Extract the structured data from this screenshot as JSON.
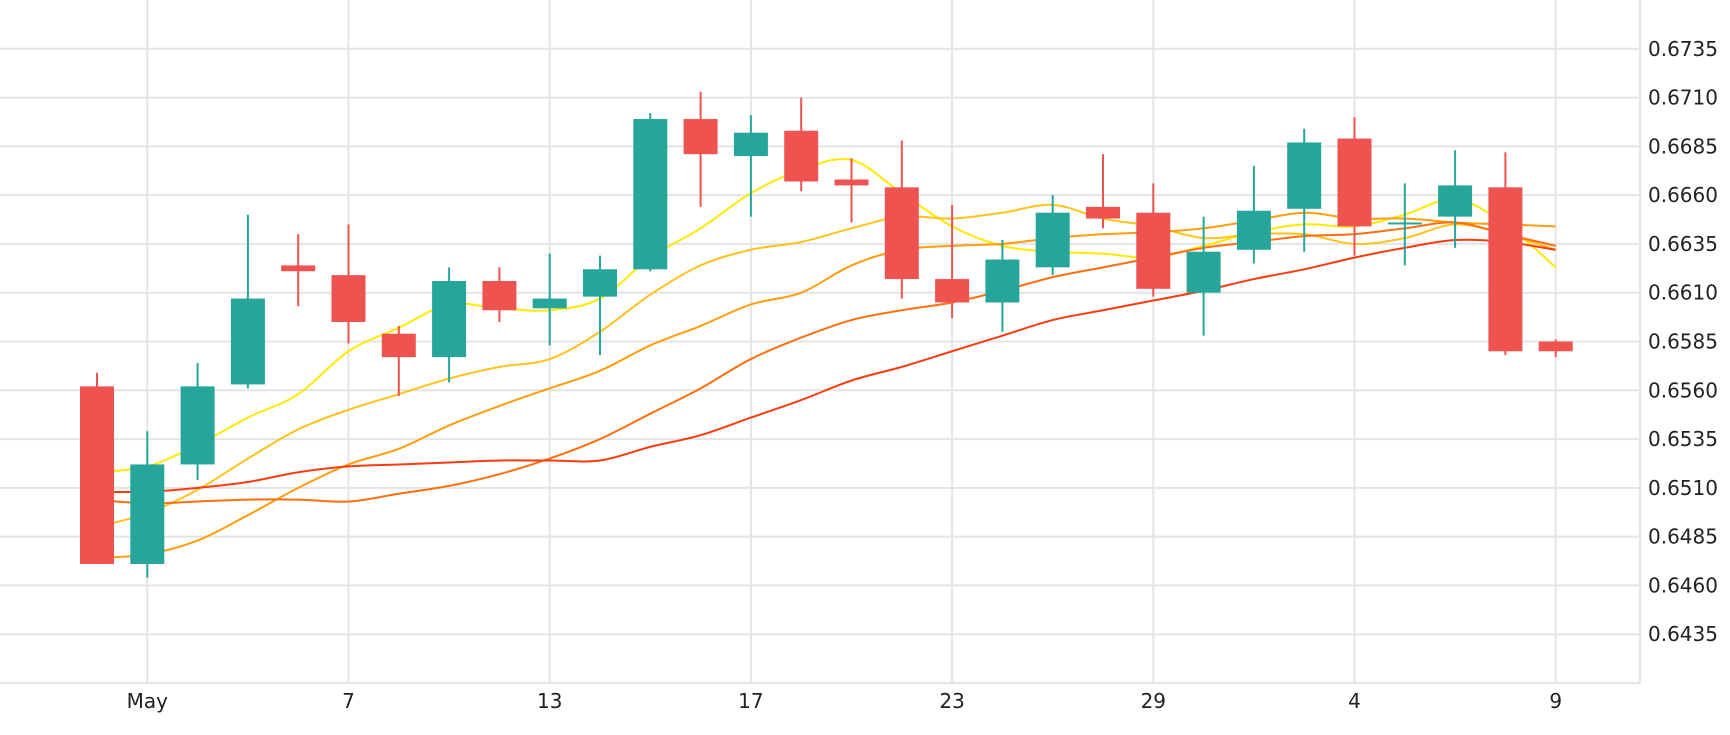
{
  "chart_data": {
    "type": "candlestick",
    "title": "",
    "xlabel": "",
    "ylabel": "",
    "ylim": [
      0.641,
      0.676
    ],
    "grid": true,
    "y_axis_position": "right",
    "y_ticks": [
      "0.6735",
      "0.6710",
      "0.6685",
      "0.6660",
      "0.6635",
      "0.6610",
      "0.6585",
      "0.6560",
      "0.6535",
      "0.6510",
      "0.6485",
      "0.6460",
      "0.6435"
    ],
    "x_ticks": [
      {
        "label": "May",
        "index": 1
      },
      {
        "label": "7",
        "index": 5
      },
      {
        "label": "13",
        "index": 9
      },
      {
        "label": "17",
        "index": 13
      },
      {
        "label": "23",
        "index": 17
      },
      {
        "label": "29",
        "index": 21
      },
      {
        "label": "4",
        "index": 25
      },
      {
        "label": "9",
        "index": 29
      }
    ],
    "colors": {
      "up": "#26a69a",
      "down": "#ef5350",
      "grid": "#e4e4e4"
    },
    "candles": [
      {
        "o": 0.6562,
        "h": 0.6569,
        "l": 0.6471,
        "c": 0.6471
      },
      {
        "o": 0.6471,
        "h": 0.6539,
        "l": 0.6464,
        "c": 0.6522
      },
      {
        "o": 0.6522,
        "h": 0.6574,
        "l": 0.6514,
        "c": 0.6562
      },
      {
        "o": 0.6563,
        "h": 0.665,
        "l": 0.6561,
        "c": 0.6607
      },
      {
        "o": 0.6624,
        "h": 0.664,
        "l": 0.6603,
        "c": 0.6621
      },
      {
        "o": 0.6619,
        "h": 0.6645,
        "l": 0.6584,
        "c": 0.6595
      },
      {
        "o": 0.6589,
        "h": 0.6593,
        "l": 0.6557,
        "c": 0.6577
      },
      {
        "o": 0.6577,
        "h": 0.6623,
        "l": 0.6564,
        "c": 0.6616
      },
      {
        "o": 0.6616,
        "h": 0.6623,
        "l": 0.6595,
        "c": 0.6601
      },
      {
        "o": 0.6602,
        "h": 0.663,
        "l": 0.6583,
        "c": 0.6607
      },
      {
        "o": 0.6608,
        "h": 0.6629,
        "l": 0.6578,
        "c": 0.6622
      },
      {
        "o": 0.6622,
        "h": 0.6702,
        "l": 0.6621,
        "c": 0.6699
      },
      {
        "o": 0.6699,
        "h": 0.6713,
        "l": 0.6654,
        "c": 0.6681
      },
      {
        "o": 0.668,
        "h": 0.6701,
        "l": 0.6649,
        "c": 0.6692
      },
      {
        "o": 0.6693,
        "h": 0.671,
        "l": 0.6662,
        "c": 0.6667
      },
      {
        "o": 0.6668,
        "h": 0.6679,
        "l": 0.6646,
        "c": 0.6665
      },
      {
        "o": 0.6664,
        "h": 0.6688,
        "l": 0.6607,
        "c": 0.6617
      },
      {
        "o": 0.6617,
        "h": 0.6655,
        "l": 0.6597,
        "c": 0.6605
      },
      {
        "o": 0.6605,
        "h": 0.6637,
        "l": 0.659,
        "c": 0.6627
      },
      {
        "o": 0.6623,
        "h": 0.666,
        "l": 0.6619,
        "c": 0.6651
      },
      {
        "o": 0.6654,
        "h": 0.6681,
        "l": 0.6643,
        "c": 0.6648
      },
      {
        "o": 0.6651,
        "h": 0.6666,
        "l": 0.6608,
        "c": 0.6612
      },
      {
        "o": 0.661,
        "h": 0.6649,
        "l": 0.6588,
        "c": 0.6631
      },
      {
        "o": 0.6632,
        "h": 0.6675,
        "l": 0.6625,
        "c": 0.6652
      },
      {
        "o": 0.6653,
        "h": 0.6694,
        "l": 0.6631,
        "c": 0.6687
      },
      {
        "o": 0.6689,
        "h": 0.67,
        "l": 0.6629,
        "c": 0.6644
      },
      {
        "o": 0.6645,
        "h": 0.6666,
        "l": 0.6624,
        "c": 0.6646
      },
      {
        "o": 0.6649,
        "h": 0.6683,
        "l": 0.6633,
        "c": 0.6665
      },
      {
        "o": 0.6664,
        "h": 0.6682,
        "l": 0.6578,
        "c": 0.658
      },
      {
        "o": 0.6585,
        "h": 0.6586,
        "l": 0.6577,
        "c": 0.658
      }
    ],
    "moving_averages": [
      {
        "color": "#ffea00",
        "values": [
          0.6518,
          0.6521,
          0.6532,
          0.6546,
          0.6558,
          0.658,
          0.6592,
          0.6604,
          0.6602,
          0.6601,
          0.6607,
          0.6628,
          0.6643,
          0.6661,
          0.6673,
          0.6678,
          0.6661,
          0.6644,
          0.6634,
          0.6631,
          0.663,
          0.6628,
          0.6634,
          0.6641,
          0.6645,
          0.6644,
          0.665,
          0.6658,
          0.6645,
          0.6623
        ]
      },
      {
        "color": "#ffc21c",
        "values": [
          0.649,
          0.6497,
          0.6509,
          0.6525,
          0.654,
          0.655,
          0.6558,
          0.6566,
          0.6572,
          0.6576,
          0.659,
          0.6609,
          0.6624,
          0.6632,
          0.6636,
          0.6643,
          0.6649,
          0.6648,
          0.6651,
          0.6655,
          0.6648,
          0.6644,
          0.6638,
          0.664,
          0.664,
          0.6635,
          0.6638,
          0.6645,
          0.664,
          0.6632
        ]
      },
      {
        "color": "#ff9d0d",
        "values": [
          0.6474,
          0.6476,
          0.6483,
          0.6496,
          0.651,
          0.6522,
          0.653,
          0.6542,
          0.6552,
          0.6561,
          0.657,
          0.6583,
          0.6593,
          0.6604,
          0.661,
          0.6624,
          0.6632,
          0.6634,
          0.6635,
          0.6638,
          0.664,
          0.6641,
          0.6643,
          0.6647,
          0.6651,
          0.6648,
          0.6648,
          0.6646,
          0.6645,
          0.6644
        ]
      },
      {
        "color": "#ff6f0f",
        "values": [
          0.6504,
          0.6502,
          0.6503,
          0.6504,
          0.6504,
          0.6503,
          0.6507,
          0.6511,
          0.6517,
          0.6525,
          0.6535,
          0.6548,
          0.6561,
          0.6576,
          0.6587,
          0.6596,
          0.6601,
          0.6605,
          0.6611,
          0.6618,
          0.6623,
          0.6628,
          0.6633,
          0.6636,
          0.6639,
          0.664,
          0.6643,
          0.6646,
          0.664,
          0.6634
        ]
      },
      {
        "color": "#fa3c0f",
        "values": [
          0.6508,
          0.6508,
          0.651,
          0.6513,
          0.6518,
          0.6521,
          0.6522,
          0.6523,
          0.6524,
          0.6524,
          0.6524,
          0.6531,
          0.6537,
          0.6546,
          0.6555,
          0.6565,
          0.6572,
          0.658,
          0.6588,
          0.6596,
          0.6601,
          0.6606,
          0.6611,
          0.6617,
          0.6622,
          0.6628,
          0.6633,
          0.6637,
          0.6636,
          0.6632
        ]
      }
    ]
  }
}
